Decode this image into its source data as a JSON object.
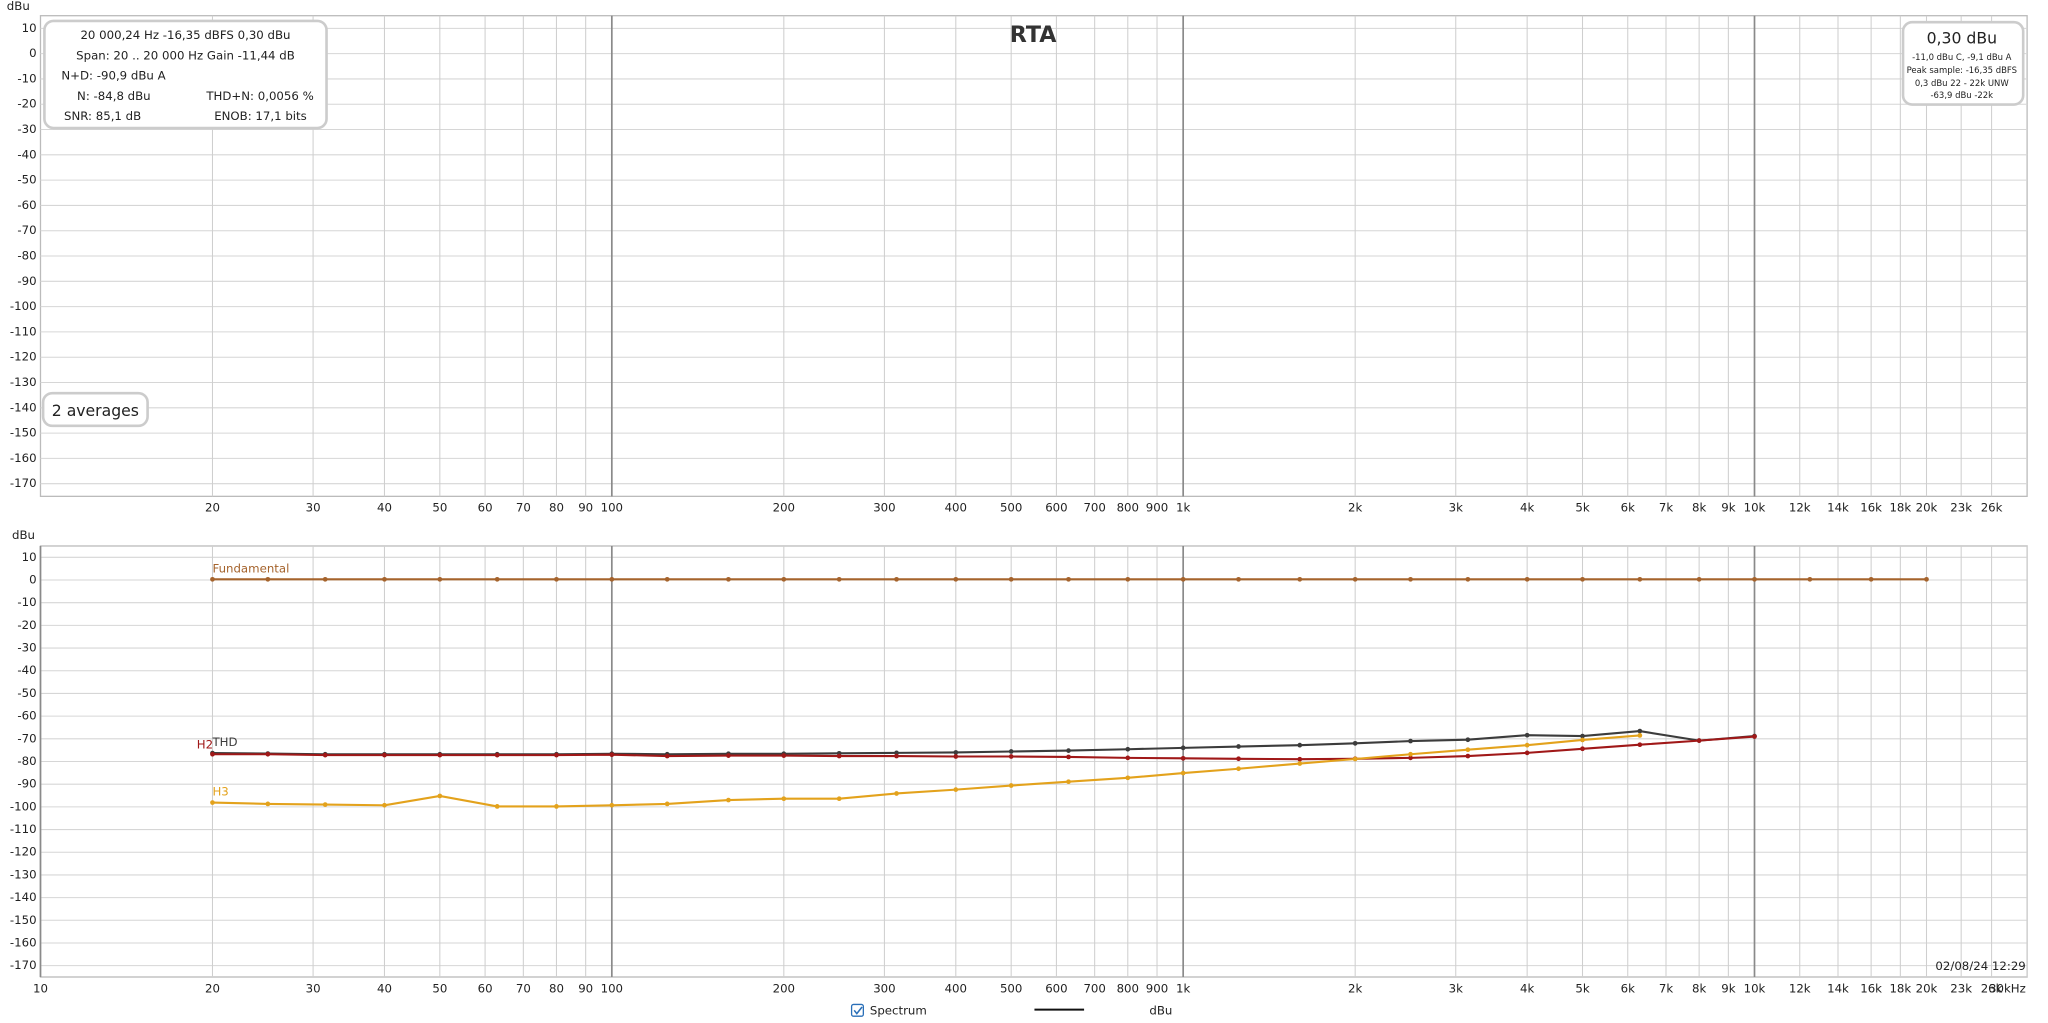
{
  "chart_data": [
    {
      "type": "line",
      "title": "RTA",
      "y_label": "dBu",
      "xscale": "log",
      "xlim": [
        10,
        30000
      ],
      "ylim": [
        -175,
        15
      ],
      "grid": true,
      "xticks": [
        20,
        30,
        40,
        50,
        60,
        70,
        80,
        90,
        100,
        200,
        300,
        400,
        500,
        600,
        700,
        800,
        900,
        {
          "value": 1000,
          "label": "1k"
        },
        {
          "value": 2000,
          "label": "2k"
        },
        {
          "value": 3000,
          "label": "3k"
        },
        {
          "value": 4000,
          "label": "4k"
        },
        {
          "value": 5000,
          "label": "5k"
        },
        {
          "value": 6000,
          "label": "6k"
        },
        {
          "value": 7000,
          "label": "7k"
        },
        {
          "value": 8000,
          "label": "8k"
        },
        {
          "value": 9000,
          "label": "9k"
        },
        {
          "value": 10000,
          "label": "10k"
        },
        {
          "value": 12000,
          "label": "12k"
        },
        {
          "value": 14000,
          "label": "14k"
        },
        {
          "value": 16000,
          "label": "16k"
        },
        {
          "value": 18000,
          "label": "18k"
        },
        {
          "value": 20000,
          "label": "20k"
        },
        {
          "value": 23000,
          "label": "23k"
        },
        {
          "value": 26000,
          "label": "26k"
        }
      ],
      "yticks": [
        10,
        0,
        -10,
        -20,
        -30,
        -40,
        -50,
        -60,
        -70,
        -80,
        -90,
        -100,
        -110,
        -120,
        -130,
        -140,
        -150,
        -160,
        -170
      ]
    },
    {
      "type": "line",
      "y_label": "dBu",
      "xscale": "log",
      "xlim": [
        10,
        30000
      ],
      "ylim": [
        -175,
        15
      ],
      "grid": true,
      "xticks": [
        10,
        20,
        30,
        40,
        50,
        60,
        70,
        80,
        90,
        100,
        200,
        300,
        400,
        500,
        600,
        700,
        800,
        900,
        {
          "value": 1000,
          "label": "1k"
        },
        {
          "value": 2000,
          "label": "2k"
        },
        {
          "value": 3000,
          "label": "3k"
        },
        {
          "value": 4000,
          "label": "4k"
        },
        {
          "value": 5000,
          "label": "5k"
        },
        {
          "value": 6000,
          "label": "6k"
        },
        {
          "value": 7000,
          "label": "7k"
        },
        {
          "value": 8000,
          "label": "8k"
        },
        {
          "value": 9000,
          "label": "9k"
        },
        {
          "value": 10000,
          "label": "10k"
        },
        {
          "value": 12000,
          "label": "12k"
        },
        {
          "value": 14000,
          "label": "14k"
        },
        {
          "value": 16000,
          "label": "16k"
        },
        {
          "value": 18000,
          "label": "18k"
        },
        {
          "value": 20000,
          "label": "20k"
        },
        {
          "value": 23000,
          "label": "23k"
        },
        {
          "value": 26000,
          "label": "26k"
        },
        {
          "value": 30000,
          "label": "30kHz"
        }
      ],
      "yticks": [
        10,
        0,
        -10,
        -20,
        -30,
        -40,
        -50,
        -60,
        -70,
        -80,
        -90,
        -100,
        -110,
        -120,
        -130,
        -140,
        -150,
        -160,
        -170
      ],
      "x": [
        20,
        25,
        31.5,
        40,
        50,
        63,
        80,
        100,
        125,
        160,
        200,
        250,
        315,
        400,
        500,
        630,
        800,
        1000,
        1250,
        1600,
        2000,
        2500,
        3150,
        4000,
        5000,
        6300,
        8000,
        10000,
        12500,
        16000,
        20000
      ],
      "series": [
        {
          "name": "Fundamental",
          "color": "#a5632c",
          "values": [
            0.3,
            0.3,
            0.3,
            0.3,
            0.3,
            0.3,
            0.3,
            0.3,
            0.3,
            0.3,
            0.3,
            0.3,
            0.3,
            0.3,
            0.3,
            0.3,
            0.3,
            0.3,
            0.3,
            0.3,
            0.3,
            0.3,
            0.3,
            0.3,
            0.3,
            0.3,
            0.3,
            0.3,
            0.3,
            0.3,
            0.3
          ]
        },
        {
          "name": "THD",
          "color": "#3c3c3c",
          "values": [
            -76.3,
            -76.5,
            -76.8,
            -76.8,
            -76.8,
            -76.8,
            -76.8,
            -76.6,
            -76.8,
            -76.6,
            -76.6,
            -76.4,
            -76.2,
            -76,
            -75.6,
            -75.2,
            -74.6,
            -74,
            -73.4,
            -72.8,
            -72,
            -71,
            -70.4,
            -68.4,
            -68.8,
            -66.6,
            -70.8,
            -68.8,
            null,
            null,
            null
          ]
        },
        {
          "name": "H2",
          "color": "#a01818",
          "values": [
            -76.8,
            -76.8,
            -77.2,
            -77.2,
            -77.2,
            -77.2,
            -77.2,
            -77,
            -77.6,
            -77.4,
            -77.4,
            -77.6,
            -77.6,
            -77.8,
            -77.8,
            -78,
            -78.4,
            -78.6,
            -78.8,
            -79,
            -78.8,
            -78.4,
            -77.6,
            -76.2,
            -74.4,
            -72.6,
            -70.8,
            -69,
            null,
            null,
            null
          ]
        },
        {
          "name": "H3",
          "color": "#e3a21c",
          "values": [
            -98.1,
            -98.7,
            -99,
            -99.3,
            -95.2,
            -99.8,
            -99.8,
            -99.3,
            -98.7,
            -97,
            -96.4,
            -96.4,
            -94.1,
            -92.4,
            -90.6,
            -88.9,
            -87.2,
            -85.1,
            -83.2,
            -80.9,
            -78.9,
            -76.8,
            -74.8,
            -72.8,
            -70.5,
            -68.5,
            null,
            null,
            null,
            null,
            null
          ]
        }
      ]
    }
  ],
  "info_panel": {
    "line1": "20 000,24 Hz  -16,35 dBFS  0,30 dBu",
    "line2": "Span: 20 .. 20 000 Hz   Gain -11,44 dB",
    "n_d": "N+D: -90,9 dBu A",
    "n": "N: -84,8 dBu",
    "thd_n": "THD+N: 0,0056 %",
    "snr": "SNR: 85,1 dB",
    "enob": "ENOB: 17,1 bits"
  },
  "level_panel": {
    "level": "0,30 dBu",
    "weighted": "-11,0 dBu C, -9,1 dBu A",
    "peak": "Peak sample: -16,35 dBFS",
    "unw": "0,3 dBu 22 - 22k UNW",
    "band": "-63,9 dBu -22k"
  },
  "averages": "2 averages",
  "timestamp": "02/08/24 12:29",
  "legend": {
    "spectrum": "Spectrum",
    "unit": "dBu"
  }
}
